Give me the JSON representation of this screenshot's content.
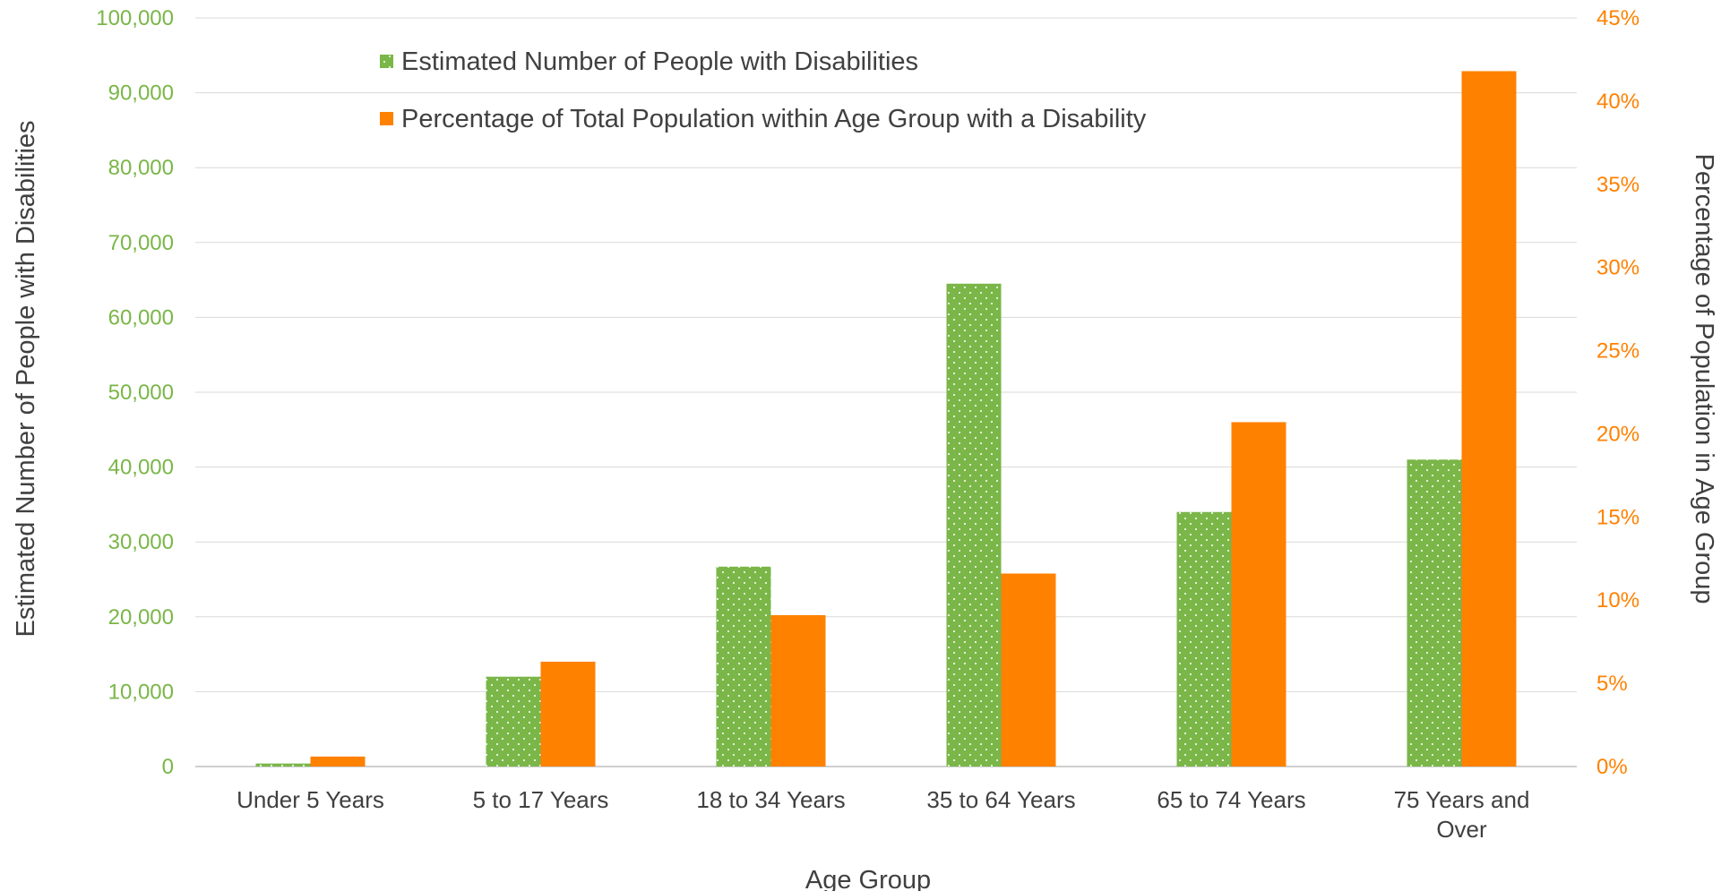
{
  "chart_data": {
    "type": "bar",
    "title": "",
    "categories": [
      "Under 5 Years",
      "5 to 17 Years",
      "18 to 34 Years",
      "35 to 64 Years",
      "65 to 74 Years",
      "75 Years and Over"
    ],
    "category_lines": [
      [
        "Under 5 Years"
      ],
      [
        "5 to 17 Years"
      ],
      [
        "18 to 34 Years"
      ],
      [
        "35 to 64 Years"
      ],
      [
        "65 to 74 Years"
      ],
      [
        "75 Years and",
        "Over"
      ]
    ],
    "series": [
      {
        "name": "Estimated Number of People with Disabilities",
        "axis": "left",
        "color": "#7ab648",
        "pattern": "dotted",
        "values": [
          400,
          12000,
          26700,
          64500,
          34000,
          41000
        ]
      },
      {
        "name": "Percentage of Total Population within Age Group with a Disability",
        "axis": "right",
        "color": "#ff8100",
        "values": [
          0.6,
          6.3,
          9.1,
          11.6,
          20.7,
          41.8
        ]
      }
    ],
    "xlabel": "Age Group",
    "ylabel": "Estimated Number of People with Disabilities",
    "y2label": "Percentage of Population in Age Group",
    "ylim": [
      0,
      100000
    ],
    "y2lim": [
      0,
      45
    ],
    "yticks": [
      "0",
      "10,000",
      "20,000",
      "30,000",
      "40,000",
      "50,000",
      "60,000",
      "70,000",
      "80,000",
      "90,000",
      "100,000"
    ],
    "y2ticks": [
      "0%",
      "5%",
      "10%",
      "15%",
      "20%",
      "25%",
      "30%",
      "35%",
      "40%",
      "45%"
    ],
    "grid": true,
    "legend_position": "top-left"
  }
}
